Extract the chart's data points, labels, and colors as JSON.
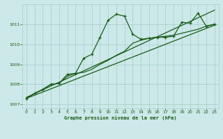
{
  "title": "Graphe pression niveau de la mer (hPa)",
  "bg_color": "#cce8e8",
  "grid_color": "#a8cccc",
  "line_color": "#1a5c1a",
  "text_color": "#1a5c1a",
  "xlim": [
    -0.5,
    23.5
  ],
  "ylim": [
    1006.8,
    1012.0
  ],
  "yticks": [
    1007,
    1008,
    1009,
    1010,
    1011
  ],
  "xticks": [
    0,
    1,
    2,
    3,
    4,
    5,
    6,
    7,
    8,
    9,
    10,
    11,
    12,
    13,
    14,
    15,
    16,
    17,
    18,
    19,
    20,
    21,
    22,
    23
  ],
  "trend1_x": [
    0,
    23
  ],
  "trend1_y": [
    1007.35,
    1011.7
  ],
  "trend2_x": [
    0,
    23
  ],
  "trend2_y": [
    1007.3,
    1010.95
  ],
  "main_x": [
    0,
    1,
    2,
    3,
    4,
    5,
    6,
    7,
    8,
    9,
    10,
    11,
    12,
    13,
    14,
    15,
    16,
    17,
    18,
    19,
    20,
    21,
    22,
    23
  ],
  "main_y": [
    1007.3,
    1007.55,
    1007.75,
    1008.0,
    1008.05,
    1008.5,
    1008.55,
    1009.3,
    1009.5,
    1010.35,
    1011.2,
    1011.5,
    1011.4,
    1010.5,
    1010.25,
    1010.3,
    1010.35,
    1010.35,
    1010.4,
    1011.1,
    1011.05,
    1011.55,
    1010.9,
    1011.0
  ],
  "smooth_x": [
    0,
    1,
    2,
    3,
    4,
    5,
    6,
    7,
    8,
    9,
    10,
    11,
    12,
    13,
    14,
    15,
    16,
    17,
    18,
    19,
    20,
    21,
    22,
    23
  ],
  "smooth_y": [
    1007.3,
    1007.55,
    1007.75,
    1008.0,
    1008.05,
    1008.4,
    1008.55,
    1008.6,
    1008.75,
    1009.0,
    1009.2,
    1009.45,
    1009.65,
    1010.05,
    1010.2,
    1010.3,
    1010.35,
    1010.4,
    1010.45,
    1010.55,
    1010.65,
    1010.75,
    1010.9,
    1011.0
  ]
}
